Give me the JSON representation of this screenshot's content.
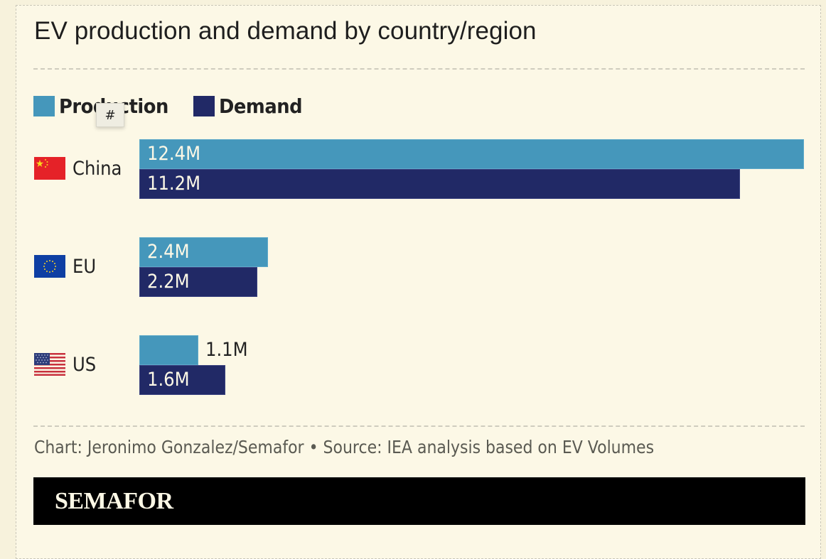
{
  "title": "EV production and demand by country/region",
  "legend": [
    {
      "label": "Production",
      "color": "#4597bb"
    },
    {
      "label": "Demand",
      "color": "#212966"
    }
  ],
  "tooltip": {
    "text": "#"
  },
  "colors": {
    "production": "#4597bb",
    "demand": "#212966",
    "background": "#fcf8e6",
    "brand_bar": "#000000"
  },
  "chart_data": {
    "type": "bar",
    "orientation": "horizontal",
    "title": "EV production and demand by country/region",
    "categories": [
      "China",
      "EU",
      "US"
    ],
    "series": [
      {
        "name": "Production",
        "values": [
          12.4,
          2.4,
          1.1
        ],
        "labels": [
          "12.4M",
          "2.4M",
          "1.1M"
        ]
      },
      {
        "name": "Demand",
        "values": [
          11.2,
          2.2,
          1.6
        ],
        "labels": [
          "11.2M",
          "2.2M",
          "1.6M"
        ]
      }
    ],
    "unit": "M",
    "xlabel": "",
    "ylabel": "",
    "xlim": [
      0,
      12.4
    ],
    "grid": false,
    "legend_position": "top-left"
  },
  "rows": [
    {
      "country": "China",
      "flag": "china-flag"
    },
    {
      "country": "EU",
      "flag": "eu-flag"
    },
    {
      "country": "US",
      "flag": "us-flag"
    }
  ],
  "source": "Chart: Jeronimo Gonzalez/Semafor • Source: IEA analysis based on EV Volumes",
  "brand": "SEMAFOR"
}
